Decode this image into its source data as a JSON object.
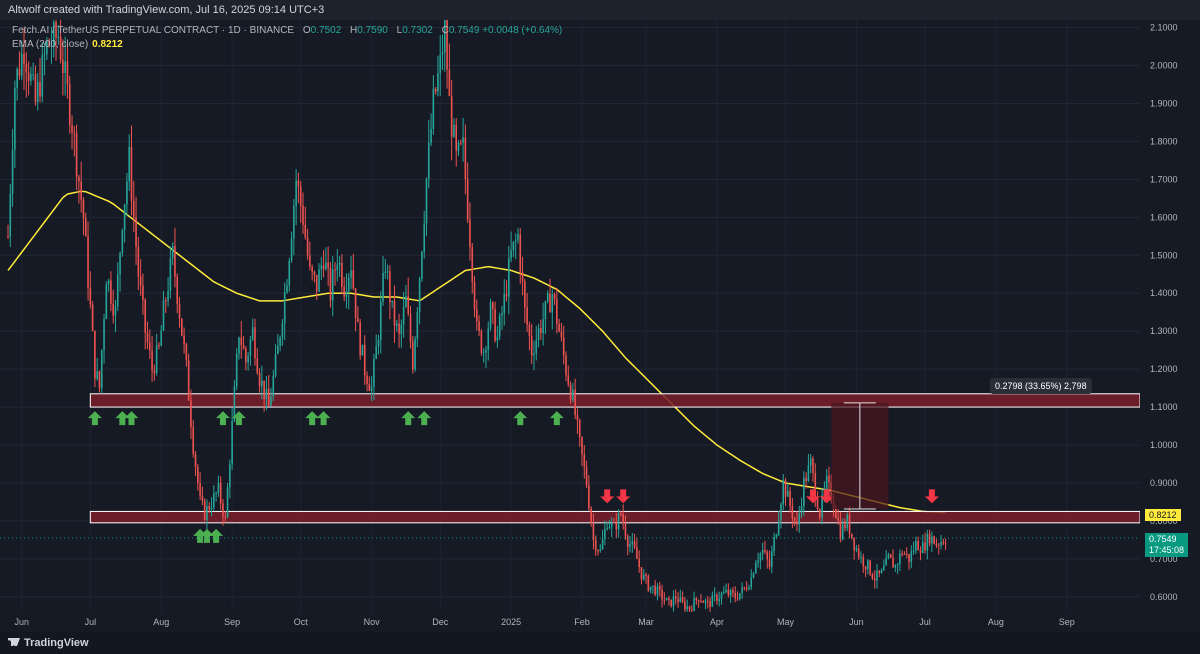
{
  "header": {
    "credit": "Altwolf created with TradingView.com, Jul 16, 2025 09:14 UTC+3"
  },
  "legend": {
    "symbol": "Fetch.AI / TetherUS PERPETUAL CONTRACT · 1D · BINANCE",
    "open_label": "O",
    "open": "0.7502",
    "high_label": "H",
    "high": "0.7590",
    "low_label": "L",
    "low": "0.7302",
    "close_label": "C",
    "close": "0.7549",
    "change": "+0.0048 (+0.64%)",
    "ema_label": "EMA (200, close)",
    "ema_value": "0.8212"
  },
  "measure": {
    "text": "0.2798 (33.65%) 2,798"
  },
  "tags": {
    "ema": "0.8212",
    "last_price": "0.7549",
    "countdown": "17:45:08"
  },
  "footer": {
    "brand": "TradingView"
  },
  "colors": {
    "bg": "#161a25",
    "up": "#26a69a",
    "down": "#ef5350",
    "ema": "#ffeb3b",
    "zone": "#7a1f2b",
    "arrow_up": "#4caf50",
    "arrow_down": "#f23645"
  },
  "chart_data": {
    "type": "candlestick",
    "ylim": [
      0.56,
      2.12
    ],
    "y_ticks": [
      "2.1000",
      "2.0000",
      "1.9000",
      "1.8000",
      "1.7000",
      "1.6000",
      "1.5000",
      "1.4000",
      "1.3000",
      "1.2000",
      "1.1000",
      "1.0000",
      "0.9000",
      "0.8000",
      "0.7000",
      "0.6000"
    ],
    "y_tick_values": [
      2.1,
      2.0,
      1.9,
      1.8,
      1.7,
      1.6,
      1.5,
      1.4,
      1.3,
      1.2,
      1.1,
      1.0,
      0.9,
      0.8,
      0.7,
      0.6
    ],
    "x_ticks": [
      "Jun",
      "Jul",
      "Aug",
      "Sep",
      "Oct",
      "Nov",
      "Dec",
      "2025",
      "Feb",
      "Mar",
      "Apr",
      "May",
      "Jun",
      "Jul",
      "Aug",
      "Sep"
    ],
    "x_tick_days": [
      6,
      36,
      67,
      98,
      128,
      159,
      189,
      220,
      251,
      279,
      310,
      340,
      371,
      401,
      432,
      463
    ],
    "total_days": 495,
    "days_with_data": 410,
    "price_anchors": [
      [
        0,
        1.55
      ],
      [
        3,
        1.95
      ],
      [
        7,
        2.05
      ],
      [
        12,
        1.9
      ],
      [
        17,
        2.05
      ],
      [
        22,
        2.08
      ],
      [
        28,
        1.85
      ],
      [
        33,
        1.6
      ],
      [
        38,
        1.2
      ],
      [
        40,
        1.15
      ],
      [
        43,
        1.45
      ],
      [
        47,
        1.35
      ],
      [
        50,
        1.6
      ],
      [
        53,
        1.75
      ],
      [
        57,
        1.45
      ],
      [
        60,
        1.3
      ],
      [
        63,
        1.2
      ],
      [
        66,
        1.25
      ],
      [
        68,
        1.35
      ],
      [
        72,
        1.5
      ],
      [
        75,
        1.35
      ],
      [
        78,
        1.2
      ],
      [
        81,
        1.0
      ],
      [
        84,
        0.85
      ],
      [
        86,
        0.82
      ],
      [
        89,
        0.85
      ],
      [
        92,
        0.88
      ],
      [
        95,
        0.8
      ],
      [
        98,
        1.05
      ],
      [
        101,
        1.3
      ],
      [
        104,
        1.22
      ],
      [
        107,
        1.3
      ],
      [
        110,
        1.18
      ],
      [
        114,
        1.1
      ],
      [
        118,
        1.25
      ],
      [
        122,
        1.45
      ],
      [
        126,
        1.7
      ],
      [
        129,
        1.6
      ],
      [
        132,
        1.45
      ],
      [
        135,
        1.42
      ],
      [
        138,
        1.5
      ],
      [
        141,
        1.4
      ],
      [
        144,
        1.5
      ],
      [
        147,
        1.42
      ],
      [
        150,
        1.48
      ],
      [
        153,
        1.3
      ],
      [
        156,
        1.2
      ],
      [
        159,
        1.15
      ],
      [
        162,
        1.3
      ],
      [
        165,
        1.48
      ],
      [
        168,
        1.35
      ],
      [
        171,
        1.28
      ],
      [
        174,
        1.38
      ],
      [
        177,
        1.22
      ],
      [
        180,
        1.45
      ],
      [
        183,
        1.7
      ],
      [
        186,
        1.9
      ],
      [
        189,
        2.0
      ],
      [
        191,
        2.1
      ],
      [
        193,
        1.9
      ],
      [
        196,
        1.75
      ],
      [
        199,
        1.78
      ],
      [
        202,
        1.55
      ],
      [
        205,
        1.3
      ],
      [
        208,
        1.25
      ],
      [
        211,
        1.35
      ],
      [
        214,
        1.28
      ],
      [
        217,
        1.38
      ],
      [
        220,
        1.5
      ],
      [
        223,
        1.55
      ],
      [
        226,
        1.35
      ],
      [
        229,
        1.25
      ],
      [
        232,
        1.3
      ],
      [
        235,
        1.35
      ],
      [
        238,
        1.4
      ],
      [
        241,
        1.3
      ],
      [
        244,
        1.2
      ],
      [
        247,
        1.12
      ],
      [
        250,
        1.0
      ],
      [
        253,
        0.9
      ],
      [
        256,
        0.75
      ],
      [
        259,
        0.72
      ],
      [
        262,
        0.8
      ],
      [
        265,
        0.78
      ],
      [
        268,
        0.82
      ],
      [
        271,
        0.75
      ],
      [
        274,
        0.72
      ],
      [
        277,
        0.66
      ],
      [
        280,
        0.63
      ],
      [
        283,
        0.62
      ],
      [
        286,
        0.6
      ],
      [
        289,
        0.58
      ],
      [
        292,
        0.6
      ],
      [
        295,
        0.58
      ],
      [
        298,
        0.57
      ],
      [
        302,
        0.6
      ],
      [
        306,
        0.58
      ],
      [
        310,
        0.6
      ],
      [
        314,
        0.61
      ],
      [
        318,
        0.6
      ],
      [
        322,
        0.62
      ],
      [
        325,
        0.65
      ],
      [
        327,
        0.7
      ],
      [
        330,
        0.72
      ],
      [
        333,
        0.68
      ],
      [
        336,
        0.78
      ],
      [
        339,
        0.9
      ],
      [
        342,
        0.84
      ],
      [
        345,
        0.78
      ],
      [
        348,
        0.9
      ],
      [
        351,
        0.95
      ],
      [
        353,
        0.88
      ],
      [
        355,
        0.82
      ],
      [
        358,
        0.9
      ],
      [
        361,
        0.85
      ],
      [
        364,
        0.77
      ],
      [
        367,
        0.8
      ],
      [
        370,
        0.74
      ],
      [
        373,
        0.7
      ],
      [
        376,
        0.68
      ],
      [
        379,
        0.65
      ],
      [
        382,
        0.66
      ],
      [
        385,
        0.7
      ],
      [
        388,
        0.68
      ],
      [
        391,
        0.72
      ],
      [
        394,
        0.7
      ],
      [
        397,
        0.74
      ],
      [
        400,
        0.73
      ],
      [
        403,
        0.76
      ],
      [
        406,
        0.74
      ],
      [
        410,
        0.755
      ]
    ],
    "ema200_anchors": [
      [
        0,
        1.46
      ],
      [
        15,
        1.58
      ],
      [
        25,
        1.66
      ],
      [
        33,
        1.67
      ],
      [
        45,
        1.64
      ],
      [
        60,
        1.57
      ],
      [
        75,
        1.5
      ],
      [
        90,
        1.43
      ],
      [
        100,
        1.4
      ],
      [
        110,
        1.38
      ],
      [
        120,
        1.38
      ],
      [
        130,
        1.39
      ],
      [
        140,
        1.4
      ],
      [
        150,
        1.4
      ],
      [
        160,
        1.39
      ],
      [
        170,
        1.39
      ],
      [
        180,
        1.38
      ],
      [
        190,
        1.42
      ],
      [
        200,
        1.46
      ],
      [
        210,
        1.47
      ],
      [
        220,
        1.46
      ],
      [
        230,
        1.44
      ],
      [
        240,
        1.41
      ],
      [
        250,
        1.36
      ],
      [
        260,
        1.3
      ],
      [
        270,
        1.23
      ],
      [
        280,
        1.17
      ],
      [
        290,
        1.11
      ],
      [
        300,
        1.05
      ],
      [
        310,
        1.0
      ],
      [
        320,
        0.96
      ],
      [
        330,
        0.925
      ],
      [
        340,
        0.9
      ],
      [
        350,
        0.89
      ],
      [
        360,
        0.88
      ],
      [
        370,
        0.865
      ],
      [
        380,
        0.85
      ],
      [
        390,
        0.835
      ],
      [
        400,
        0.825
      ],
      [
        410,
        0.8212
      ]
    ],
    "zones": [
      {
        "name": "resistance-support-1.12",
        "y_bottom": 1.1,
        "y_top": 1.135
      },
      {
        "name": "resistance-support-0.81",
        "y_bottom": 0.795,
        "y_top": 0.825
      }
    ],
    "up_arrows_days": [
      38,
      50,
      54,
      94,
      101,
      133,
      138,
      175,
      182,
      224,
      240
    ],
    "down_arrows_days": [
      262,
      269,
      352,
      358,
      404
    ],
    "measure": {
      "from": 0.8313,
      "to": 1.1111,
      "day_start": 360,
      "day_end": 385
    },
    "last_price": 0.7549,
    "ema_last": 0.8212
  }
}
